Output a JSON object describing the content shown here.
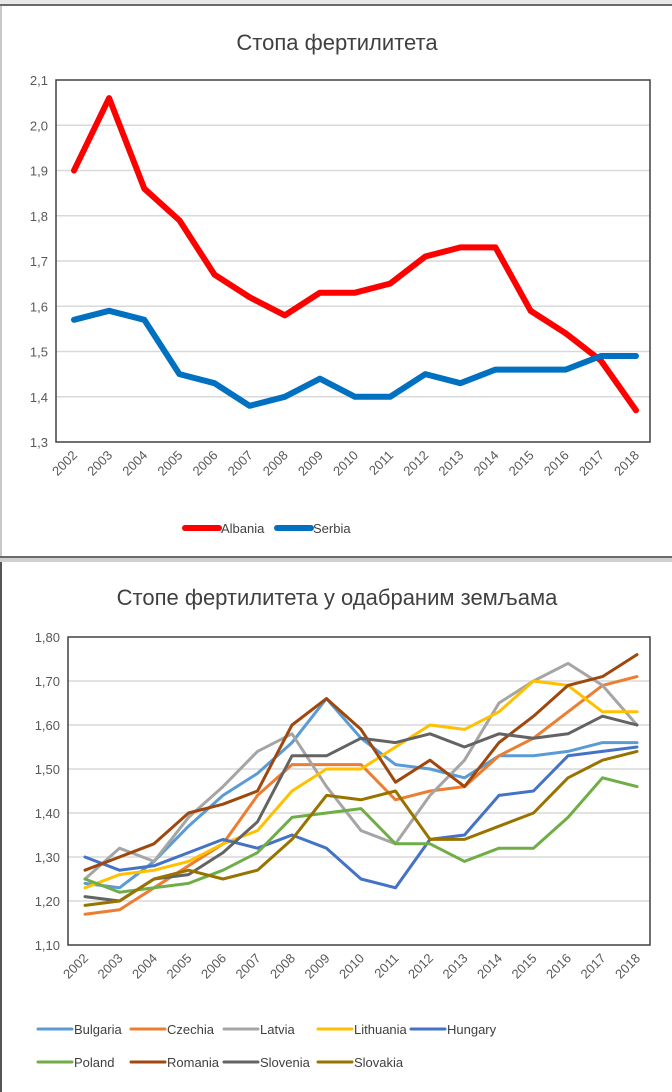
{
  "chart_data": [
    {
      "type": "line",
      "title": "Стопа фертилитета",
      "xlabel": "",
      "ylabel": "",
      "categories": [
        "2002",
        "2003",
        "2004",
        "2005",
        "2006",
        "2007",
        "2008",
        "2009",
        "2010",
        "2011",
        "2012",
        "2013",
        "2014",
        "2015",
        "2016",
        "2017",
        "2018"
      ],
      "ylim": [
        1.3,
        2.1
      ],
      "yticks": [
        "2,1",
        "2,0",
        "1,9",
        "1,8",
        "1,7",
        "1,6",
        "1,5",
        "1,4",
        "1,3"
      ],
      "ytick_values": [
        2.1,
        2.0,
        1.9,
        1.8,
        1.7,
        1.6,
        1.5,
        1.4,
        1.3
      ],
      "grid": true,
      "legend_position": "bottom",
      "series": [
        {
          "name": "Albania",
          "color": "#ff0000",
          "values": [
            1.9,
            2.06,
            1.86,
            1.79,
            1.67,
            1.62,
            1.58,
            1.63,
            1.63,
            1.65,
            1.71,
            1.73,
            1.73,
            1.59,
            1.54,
            1.48,
            1.37
          ]
        },
        {
          "name": "Serbia",
          "color": "#0070c0",
          "values": [
            1.57,
            1.59,
            1.57,
            1.45,
            1.43,
            1.38,
            1.4,
            1.44,
            1.4,
            1.4,
            1.45,
            1.43,
            1.46,
            1.46,
            1.46,
            1.49,
            1.49
          ]
        }
      ]
    },
    {
      "type": "line",
      "title": "Стопе фертилитета у одабраним земљама",
      "xlabel": "",
      "ylabel": "",
      "categories": [
        "2002",
        "2003",
        "2004",
        "2005",
        "2006",
        "2007",
        "2008",
        "2009",
        "2010",
        "2011",
        "2012",
        "2013",
        "2014",
        "2015",
        "2016",
        "2017",
        "2018"
      ],
      "ylim": [
        1.1,
        1.8
      ],
      "yticks": [
        "1,80",
        "1,70",
        "1,60",
        "1,50",
        "1,40",
        "1,30",
        "1,20",
        "1,10"
      ],
      "ytick_values": [
        1.8,
        1.7,
        1.6,
        1.5,
        1.4,
        1.3,
        1.2,
        1.1
      ],
      "grid": true,
      "legend_position": "bottom",
      "series": [
        {
          "name": "Bulgaria",
          "color": "#5b9bd5",
          "values": [
            1.24,
            1.23,
            1.29,
            1.37,
            1.44,
            1.49,
            1.56,
            1.66,
            1.57,
            1.51,
            1.5,
            1.48,
            1.53,
            1.53,
            1.54,
            1.56,
            1.56
          ]
        },
        {
          "name": "Czechia",
          "color": "#ed7d31",
          "values": [
            1.17,
            1.18,
            1.23,
            1.28,
            1.33,
            1.44,
            1.51,
            1.51,
            1.51,
            1.43,
            1.45,
            1.46,
            1.53,
            1.57,
            1.63,
            1.69,
            1.71
          ]
        },
        {
          "name": "Latvia",
          "color": "#a5a5a5",
          "values": [
            1.25,
            1.32,
            1.29,
            1.39,
            1.46,
            1.54,
            1.58,
            1.46,
            1.36,
            1.33,
            1.44,
            1.52,
            1.65,
            1.7,
            1.74,
            1.69,
            1.6
          ]
        },
        {
          "name": "Lithuania",
          "color": "#ffc000",
          "values": [
            1.23,
            1.26,
            1.27,
            1.29,
            1.33,
            1.36,
            1.45,
            1.5,
            1.5,
            1.55,
            1.6,
            1.59,
            1.63,
            1.7,
            1.69,
            1.63,
            1.63
          ]
        },
        {
          "name": "Hungary",
          "color": "#4472c4",
          "values": [
            1.3,
            1.27,
            1.28,
            1.31,
            1.34,
            1.32,
            1.35,
            1.32,
            1.25,
            1.23,
            1.34,
            1.35,
            1.44,
            1.45,
            1.53,
            1.54,
            1.55
          ]
        },
        {
          "name": "Poland",
          "color": "#70ad47",
          "values": [
            1.25,
            1.22,
            1.23,
            1.24,
            1.27,
            1.31,
            1.39,
            1.4,
            1.41,
            1.33,
            1.33,
            1.29,
            1.32,
            1.32,
            1.39,
            1.48,
            1.46
          ]
        },
        {
          "name": "Romania",
          "color": "#9e480e",
          "values": [
            1.27,
            1.3,
            1.33,
            1.4,
            1.42,
            1.45,
            1.6,
            1.66,
            1.59,
            1.47,
            1.52,
            1.46,
            1.56,
            1.62,
            1.69,
            1.71,
            1.76
          ]
        },
        {
          "name": "Slovenia",
          "color": "#636363",
          "values": [
            1.21,
            1.2,
            1.25,
            1.26,
            1.31,
            1.38,
            1.53,
            1.53,
            1.57,
            1.56,
            1.58,
            1.55,
            1.58,
            1.57,
            1.58,
            1.62,
            1.6
          ]
        },
        {
          "name": "Slovakia",
          "color": "#997300",
          "values": [
            1.19,
            1.2,
            1.25,
            1.27,
            1.25,
            1.27,
            1.34,
            1.44,
            1.43,
            1.45,
            1.34,
            1.34,
            1.37,
            1.4,
            1.48,
            1.52,
            1.54
          ]
        }
      ]
    }
  ]
}
